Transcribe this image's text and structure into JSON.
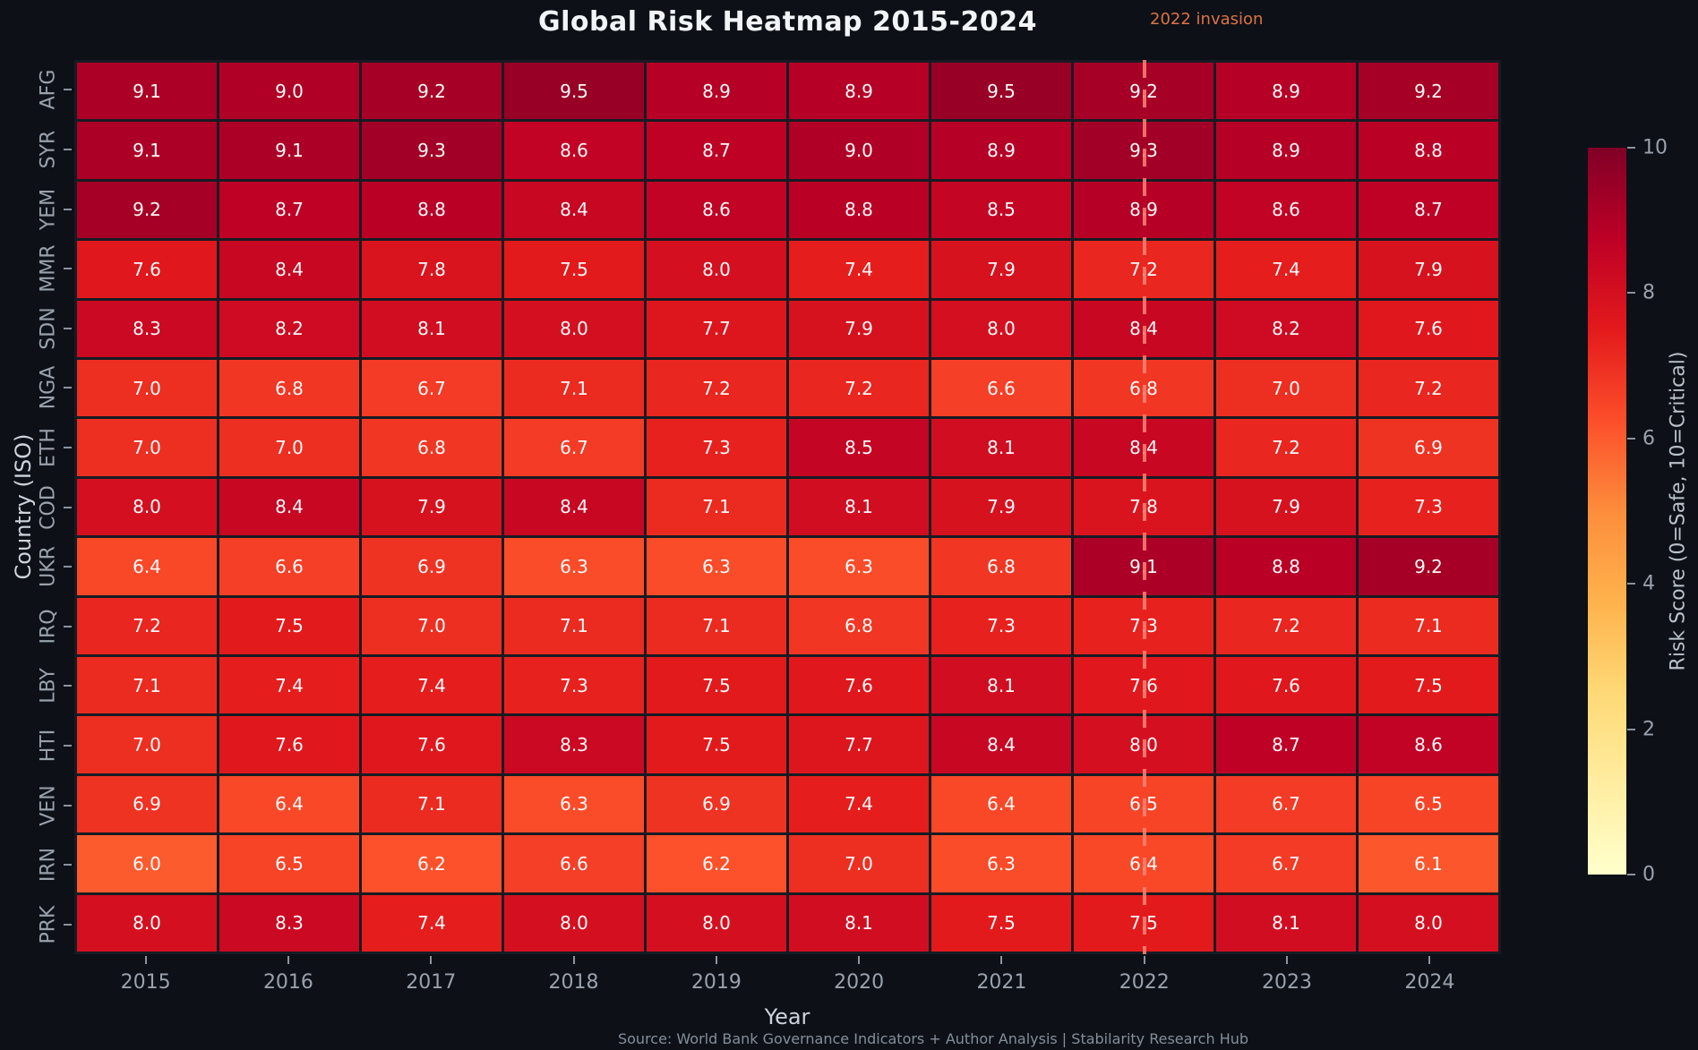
{
  "title": "Global Risk Heatmap 2015-2024",
  "source": "Source: World Bank Governance Indicators + Author Analysis | Stabilarity Research Hub",
  "colors": {
    "background": "#0d1117",
    "grid_line": "#171b23",
    "cell_text": "#fafafa",
    "tick_text": "#99a1ac",
    "vline": "#fa8072",
    "annotation_text": "#dc7245"
  },
  "chart_data": {
    "type": "heatmap",
    "title": "Global Risk Heatmap 2015-2024",
    "xlabel": "Year",
    "ylabel": "Country (ISO)",
    "x": [
      "2015",
      "2016",
      "2017",
      "2018",
      "2019",
      "2020",
      "2021",
      "2022",
      "2023",
      "2024"
    ],
    "y": [
      "AFG",
      "SYR",
      "YEM",
      "MMR",
      "SDN",
      "NGA",
      "ETH",
      "COD",
      "UKR",
      "IRQ",
      "LBY",
      "HTI",
      "VEN",
      "IRN",
      "PRK"
    ],
    "values": [
      [
        9.1,
        9.0,
        9.2,
        9.5,
        8.9,
        8.9,
        9.5,
        9.2,
        8.9,
        9.2
      ],
      [
        9.1,
        9.1,
        9.3,
        8.6,
        8.7,
        9.0,
        8.9,
        9.3,
        8.9,
        8.8
      ],
      [
        9.2,
        8.7,
        8.8,
        8.4,
        8.6,
        8.8,
        8.5,
        8.9,
        8.6,
        8.7
      ],
      [
        7.6,
        8.4,
        7.8,
        7.5,
        8.0,
        7.4,
        7.9,
        7.2,
        7.4,
        7.9
      ],
      [
        8.3,
        8.2,
        8.1,
        8.0,
        7.7,
        7.9,
        8.0,
        8.4,
        8.2,
        7.6
      ],
      [
        7.0,
        6.8,
        6.7,
        7.1,
        7.2,
        7.2,
        6.6,
        6.8,
        7.0,
        7.2
      ],
      [
        7.0,
        7.0,
        6.8,
        6.7,
        7.3,
        8.5,
        8.1,
        8.4,
        7.2,
        6.9
      ],
      [
        8.0,
        8.4,
        7.9,
        8.4,
        7.1,
        8.1,
        7.9,
        7.8,
        7.9,
        7.3
      ],
      [
        6.4,
        6.6,
        6.9,
        6.3,
        6.3,
        6.3,
        6.8,
        9.1,
        8.8,
        9.2
      ],
      [
        7.2,
        7.5,
        7.0,
        7.1,
        7.1,
        6.8,
        7.3,
        7.3,
        7.2,
        7.1
      ],
      [
        7.1,
        7.4,
        7.4,
        7.3,
        7.5,
        7.6,
        8.1,
        7.6,
        7.6,
        7.5
      ],
      [
        7.0,
        7.6,
        7.6,
        8.3,
        7.5,
        7.7,
        8.4,
        8.0,
        8.7,
        8.6
      ],
      [
        6.9,
        6.4,
        7.1,
        6.3,
        6.9,
        7.4,
        6.4,
        6.5,
        6.7,
        6.5
      ],
      [
        6.0,
        6.5,
        6.2,
        6.6,
        6.2,
        7.0,
        6.3,
        6.4,
        6.7,
        6.1
      ],
      [
        8.0,
        8.3,
        7.4,
        8.0,
        8.0,
        8.1,
        7.5,
        7.5,
        8.1,
        8.0
      ]
    ],
    "value_format_decimals": 1,
    "vmin": 0,
    "vmax": 10,
    "colormap": "YlOrRd",
    "colormap_stops": [
      {
        "pos": 0.0,
        "color": "#ffffcc"
      },
      {
        "pos": 0.125,
        "color": "#ffeda0"
      },
      {
        "pos": 0.25,
        "color": "#fed976"
      },
      {
        "pos": 0.375,
        "color": "#feb24c"
      },
      {
        "pos": 0.5,
        "color": "#fd8d3c"
      },
      {
        "pos": 0.625,
        "color": "#fc4e2a"
      },
      {
        "pos": 0.75,
        "color": "#e31a1c"
      },
      {
        "pos": 0.875,
        "color": "#bd0026"
      },
      {
        "pos": 1.0,
        "color": "#800026"
      }
    ],
    "colorbar": {
      "label": "Risk Score (0=Safe, 10=Critical)",
      "ticks": [
        0,
        2,
        4,
        6,
        8,
        10
      ]
    },
    "vline": {
      "x": "2022",
      "label": "2022 invasion"
    },
    "legend_position": "right",
    "grid": "cell-borders"
  }
}
